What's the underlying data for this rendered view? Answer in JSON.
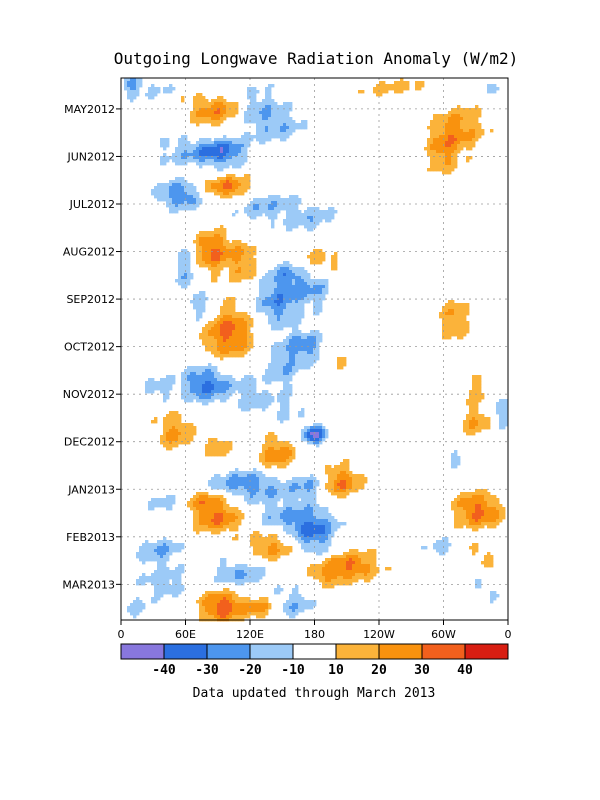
{
  "chart_data": {
    "type": "heatmap",
    "title": "Outgoing Longwave Radiation Anomaly (W/m2)",
    "footer": "Data updated through March 2013",
    "x_ticks": [
      {
        "lon": 0,
        "label": "0"
      },
      {
        "lon": 60,
        "label": "60E"
      },
      {
        "lon": 120,
        "label": "120E"
      },
      {
        "lon": 180,
        "label": "180"
      },
      {
        "lon": 240,
        "label": "120W"
      },
      {
        "lon": 300,
        "label": "60W"
      },
      {
        "lon": 360,
        "label": "0"
      }
    ],
    "xlim": [
      0,
      360
    ],
    "y_ticks": [
      {
        "month": 1,
        "label": "MAY2012"
      },
      {
        "month": 2,
        "label": "JUN2012"
      },
      {
        "month": 3,
        "label": "JUL2012"
      },
      {
        "month": 4,
        "label": "AUG2012"
      },
      {
        "month": 5,
        "label": "SEP2012"
      },
      {
        "month": 6,
        "label": "OCT2012"
      },
      {
        "month": 7,
        "label": "NOV2012"
      },
      {
        "month": 8,
        "label": "DEC2012"
      },
      {
        "month": 9,
        "label": "JAN2013"
      },
      {
        "month": 10,
        "label": "FEB2013"
      },
      {
        "month": 11,
        "label": "MAR2013"
      }
    ],
    "ylim_months": [
      0.35,
      11.75
    ],
    "grid": true,
    "colorbar": {
      "labels": [
        "-40",
        "-30",
        "-20",
        "-10",
        "10",
        "20",
        "30",
        "40"
      ],
      "colors": [
        "#8877dd",
        "#2b6fe0",
        "#4d96ee",
        "#9ccaf7",
        "#ffffff",
        "#fbb33a",
        "#f9920e",
        "#f2601d",
        "#d81e12"
      ]
    },
    "anomalies": [
      {
        "lon": 10,
        "month": 0.5,
        "v": -22,
        "rx": 10,
        "ry": 0.25
      },
      {
        "lon": 40,
        "month": 0.55,
        "v": -12,
        "rx": 22,
        "ry": 0.3
      },
      {
        "lon": 80,
        "month": 0.6,
        "v": -25,
        "rx": 18,
        "ry": 0.25
      },
      {
        "lon": 90,
        "month": 1.0,
        "v": 28,
        "rx": 28,
        "ry": 0.4
      },
      {
        "lon": 70,
        "month": 0.55,
        "v": 18,
        "rx": 20,
        "ry": 0.3
      },
      {
        "lon": 125,
        "month": 1.0,
        "v": -20,
        "rx": 22,
        "ry": 0.5
      },
      {
        "lon": 150,
        "month": 1.4,
        "v": -14,
        "rx": 25,
        "ry": 0.45
      },
      {
        "lon": 255,
        "month": 0.55,
        "v": 14,
        "rx": 40,
        "ry": 0.18
      },
      {
        "lon": 345,
        "month": 0.55,
        "v": -14,
        "rx": 12,
        "ry": 0.15
      },
      {
        "lon": 315,
        "month": 1.4,
        "v": 22,
        "rx": 25,
        "ry": 0.5
      },
      {
        "lon": 300,
        "month": 1.9,
        "v": 20,
        "rx": 15,
        "ry": 0.5
      },
      {
        "lon": 95,
        "month": 1.9,
        "v": -32,
        "rx": 22,
        "ry": 0.3
      },
      {
        "lon": 60,
        "month": 1.9,
        "v": -16,
        "rx": 30,
        "ry": 0.35
      },
      {
        "lon": 100,
        "month": 2.65,
        "v": 33,
        "rx": 24,
        "ry": 0.25
      },
      {
        "lon": 55,
        "month": 2.8,
        "v": -30,
        "rx": 22,
        "ry": 0.3
      },
      {
        "lon": 130,
        "month": 3.0,
        "v": -18,
        "rx": 28,
        "ry": 0.35
      },
      {
        "lon": 175,
        "month": 3.3,
        "v": -15,
        "rx": 28,
        "ry": 0.4
      },
      {
        "lon": 85,
        "month": 4.0,
        "v": 32,
        "rx": 20,
        "ry": 0.45
      },
      {
        "lon": 115,
        "month": 4.3,
        "v": 20,
        "rx": 12,
        "ry": 0.5
      },
      {
        "lon": 60,
        "month": 4.3,
        "v": -20,
        "rx": 12,
        "ry": 0.55
      },
      {
        "lon": 180,
        "month": 4.2,
        "v": 18,
        "rx": 30,
        "ry": 0.25
      },
      {
        "lon": 155,
        "month": 4.4,
        "v": -22,
        "rx": 18,
        "ry": 0.4
      },
      {
        "lon": 145,
        "month": 5.1,
        "v": -26,
        "rx": 22,
        "ry": 0.5
      },
      {
        "lon": 180,
        "month": 4.8,
        "v": -18,
        "rx": 18,
        "ry": 0.4
      },
      {
        "lon": 100,
        "month": 5.7,
        "v": 34,
        "rx": 24,
        "ry": 0.55
      },
      {
        "lon": 75,
        "month": 5.2,
        "v": -20,
        "rx": 12,
        "ry": 0.35
      },
      {
        "lon": 170,
        "month": 6.0,
        "v": -25,
        "rx": 20,
        "ry": 0.35
      },
      {
        "lon": 150,
        "month": 6.5,
        "v": -18,
        "rx": 16,
        "ry": 0.4
      },
      {
        "lon": 80,
        "month": 6.8,
        "v": -32,
        "rx": 24,
        "ry": 0.4
      },
      {
        "lon": 120,
        "month": 7.0,
        "v": -15,
        "rx": 14,
        "ry": 0.4
      },
      {
        "lon": 35,
        "month": 6.9,
        "v": -14,
        "rx": 15,
        "ry": 0.3
      },
      {
        "lon": 150,
        "month": 7.3,
        "v": -12,
        "rx": 22,
        "ry": 0.35
      },
      {
        "lon": 205,
        "month": 6.3,
        "v": 12,
        "rx": 10,
        "ry": 0.2
      },
      {
        "lon": 310,
        "month": 5.4,
        "v": 20,
        "rx": 14,
        "ry": 0.5
      },
      {
        "lon": 330,
        "month": 6.9,
        "v": 14,
        "rx": 15,
        "ry": 0.3
      },
      {
        "lon": 355,
        "month": 7.4,
        "v": -18,
        "rx": 10,
        "ry": 0.35
      },
      {
        "lon": 50,
        "month": 7.8,
        "v": 22,
        "rx": 18,
        "ry": 0.45
      },
      {
        "lon": 90,
        "month": 8.1,
        "v": 18,
        "rx": 12,
        "ry": 0.3
      },
      {
        "lon": 180,
        "month": 7.85,
        "v": -45,
        "rx": 10,
        "ry": 0.2
      },
      {
        "lon": 145,
        "month": 8.3,
        "v": 28,
        "rx": 18,
        "ry": 0.4
      },
      {
        "lon": 330,
        "month": 7.6,
        "v": 20,
        "rx": 15,
        "ry": 0.35
      },
      {
        "lon": 310,
        "month": 8.3,
        "v": -12,
        "rx": 12,
        "ry": 0.25
      },
      {
        "lon": 120,
        "month": 8.9,
        "v": -26,
        "rx": 45,
        "ry": 0.35
      },
      {
        "lon": 205,
        "month": 8.85,
        "v": 30,
        "rx": 18,
        "ry": 0.35
      },
      {
        "lon": 175,
        "month": 8.95,
        "v": -15,
        "rx": 15,
        "ry": 0.3
      },
      {
        "lon": 75,
        "month": 9.2,
        "v": 24,
        "rx": 22,
        "ry": 0.25
      },
      {
        "lon": 90,
        "month": 9.6,
        "v": 30,
        "rx": 24,
        "ry": 0.35
      },
      {
        "lon": 45,
        "month": 9.3,
        "v": -15,
        "rx": 20,
        "ry": 0.3
      },
      {
        "lon": 180,
        "month": 9.9,
        "v": -30,
        "rx": 22,
        "ry": 0.45
      },
      {
        "lon": 150,
        "month": 9.6,
        "v": -18,
        "rx": 30,
        "ry": 0.35
      },
      {
        "lon": 140,
        "month": 10.2,
        "v": 24,
        "rx": 22,
        "ry": 0.35
      },
      {
        "lon": 35,
        "month": 10.3,
        "v": -20,
        "rx": 22,
        "ry": 0.35
      },
      {
        "lon": 330,
        "month": 9.3,
        "v": 22,
        "rx": 20,
        "ry": 0.3
      },
      {
        "lon": 335,
        "month": 9.6,
        "v": 20,
        "rx": 25,
        "ry": 0.3
      },
      {
        "lon": 300,
        "month": 10.25,
        "v": -14,
        "rx": 18,
        "ry": 0.25
      },
      {
        "lon": 335,
        "month": 10.4,
        "v": 14,
        "rx": 15,
        "ry": 0.3
      },
      {
        "lon": 215,
        "month": 10.6,
        "v": 30,
        "rx": 25,
        "ry": 0.3
      },
      {
        "lon": 190,
        "month": 10.8,
        "v": 18,
        "rx": 18,
        "ry": 0.25
      },
      {
        "lon": 110,
        "month": 10.8,
        "v": -20,
        "rx": 28,
        "ry": 0.35
      },
      {
        "lon": 40,
        "month": 11.0,
        "v": -16,
        "rx": 25,
        "ry": 0.3
      },
      {
        "lon": 95,
        "month": 11.45,
        "v": 38,
        "rx": 22,
        "ry": 0.35
      },
      {
        "lon": 160,
        "month": 11.4,
        "v": -18,
        "rx": 18,
        "ry": 0.35
      },
      {
        "lon": 130,
        "month": 11.5,
        "v": 22,
        "rx": 12,
        "ry": 0.25
      },
      {
        "lon": 15,
        "month": 11.55,
        "v": -14,
        "rx": 15,
        "ry": 0.25
      },
      {
        "lon": 340,
        "month": 11.1,
        "v": -12,
        "rx": 15,
        "ry": 0.3
      }
    ]
  }
}
